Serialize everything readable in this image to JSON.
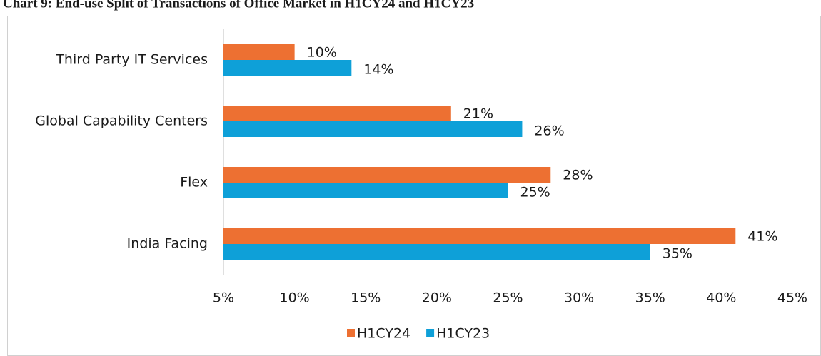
{
  "chart_data": {
    "type": "hbar",
    "title": "Chart 9: End-use Split of Transactions of Office Market in H1CY24 and H1CY23",
    "categories": [
      "Third Party IT Services",
      "Global Capability Centers",
      "Flex",
      "India Facing"
    ],
    "series": [
      {
        "name": "H1CY24",
        "color": "#ed7032",
        "values": [
          10,
          21,
          28,
          41
        ],
        "value_labels": [
          "10%",
          "21%",
          "28%",
          "41%"
        ]
      },
      {
        "name": "H1CY23",
        "color": "#0ea0d8",
        "values": [
          14,
          26,
          25,
          35
        ],
        "value_labels": [
          "14%",
          "26%",
          "25%",
          "35%"
        ]
      }
    ],
    "xlim": [
      5,
      45
    ],
    "xticks": [
      {
        "value": 5,
        "label": "5%"
      },
      {
        "value": 10,
        "label": "10%"
      },
      {
        "value": 15,
        "label": "15%"
      },
      {
        "value": 20,
        "label": "20%"
      },
      {
        "value": 25,
        "label": "25%"
      },
      {
        "value": 30,
        "label": "30%"
      },
      {
        "value": 35,
        "label": "35%"
      },
      {
        "value": 40,
        "label": "40%"
      },
      {
        "value": 45,
        "label": "45%"
      }
    ],
    "legend": "bottom"
  }
}
